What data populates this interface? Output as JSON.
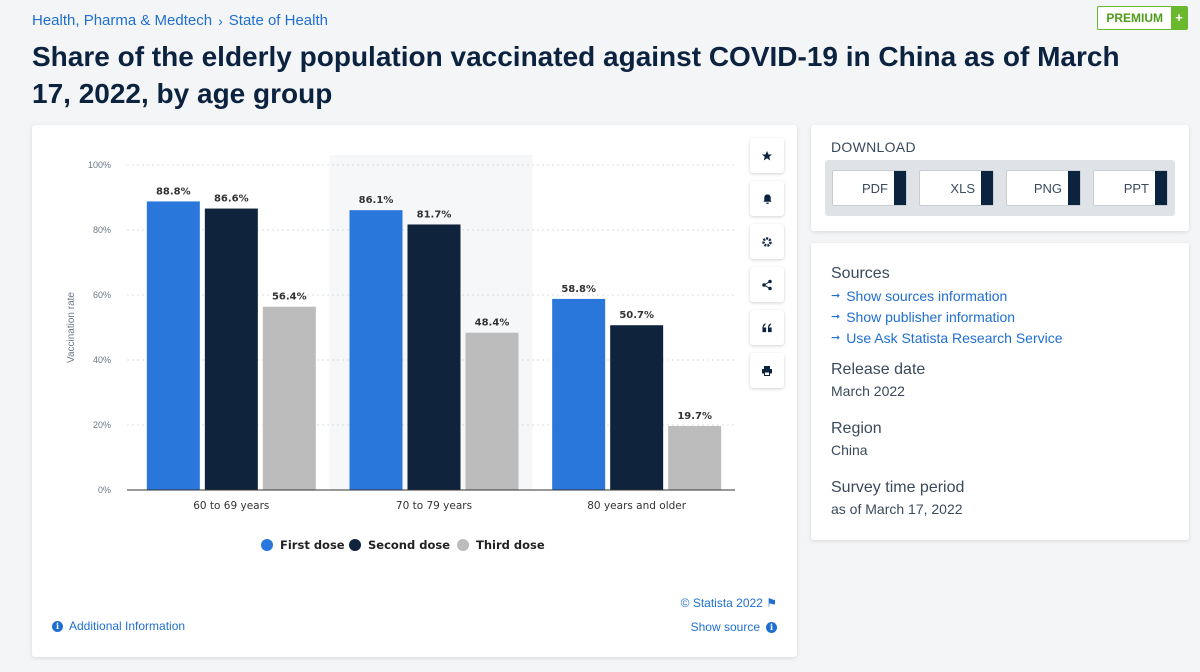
{
  "breadcrumb": {
    "items": [
      "Health, Pharma & Medtech",
      "State of Health"
    ],
    "sep": "›"
  },
  "premium": {
    "label": "PREMIUM",
    "plus": "+"
  },
  "title": "Share of the elderly population vaccinated against COVID-19 in China as of March 17, 2022, by age group",
  "chart_data": {
    "type": "bar",
    "categories": [
      "60 to 69 years",
      "70 to 79 years",
      "80 years and older"
    ],
    "series": [
      {
        "name": "First dose",
        "color": "#2a77dc",
        "values": [
          88.8,
          86.1,
          58.8
        ],
        "labels": [
          "88.8%",
          "86.1%",
          "58.8%"
        ]
      },
      {
        "name": "Second dose",
        "color": "#0f243c",
        "values": [
          86.6,
          81.7,
          50.7
        ],
        "labels": [
          "86.6%",
          "81.7%",
          "50.7%"
        ]
      },
      {
        "name": "Third dose",
        "color": "#bcbcbc",
        "values": [
          56.4,
          48.4,
          19.7
        ],
        "labels": [
          "56.4%",
          "48.4%",
          "19.7%"
        ]
      }
    ],
    "ylabel": "Vaccination rate",
    "ylim": [
      0,
      100
    ],
    "yticks": [
      0,
      20,
      40,
      60,
      80,
      100
    ],
    "ytick_labels": [
      "0%",
      "20%",
      "40%",
      "60%",
      "80%",
      "100%"
    ],
    "grid": true,
    "legend": "bottom"
  },
  "chart_footer": {
    "copyright": "© Statista 2022",
    "additional_info": "Additional Information",
    "show_source": "Show source"
  },
  "tools": [
    "star-icon",
    "bell-icon",
    "gear-icon",
    "share-icon",
    "quote-icon",
    "print-icon"
  ],
  "download": {
    "title": "DOWNLOAD",
    "buttons": [
      "PDF",
      "XLS",
      "PNG",
      "PPT"
    ]
  },
  "info": {
    "sources_title": "Sources",
    "links": [
      "Show sources information",
      "Show publisher information",
      "Use Ask Statista Research Service"
    ],
    "release_title": "Release date",
    "release_value": "March 2022",
    "region_title": "Region",
    "region_value": "China",
    "survey_title": "Survey time period",
    "survey_value": "as of March 17, 2022"
  }
}
